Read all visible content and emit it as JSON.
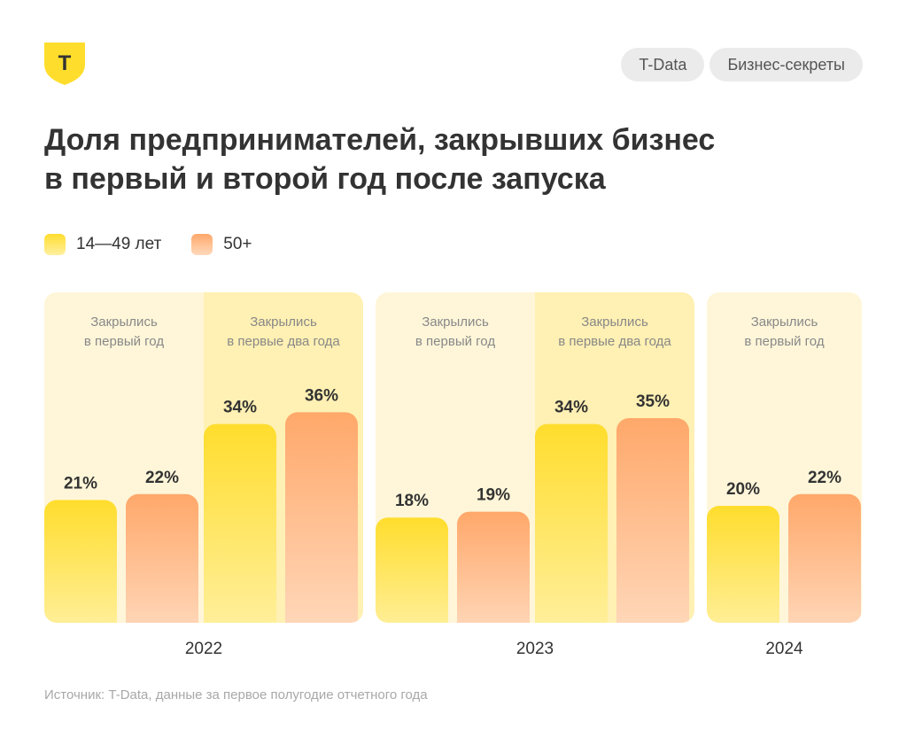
{
  "brand": {
    "logo_letter": "Т",
    "logo_color": "#ffdd2d"
  },
  "tags": [
    "T-Data",
    "Бизнес-секреты"
  ],
  "title_line1": "Доля предпринимателей, закрывших бизнес",
  "title_line2": "в первый и второй год после запуска",
  "legend": [
    {
      "label": "14—49 лет",
      "icon": "yellow-square-icon"
    },
    {
      "label": "50+",
      "icon": "orange-square-icon"
    }
  ],
  "colors": {
    "yellow_top": "#ffdd2d",
    "yellow_bottom": "#fff0a0",
    "orange_top": "#ffa86a",
    "orange_bottom": "#ffd9bc",
    "panel_light": "#fff6d9",
    "panel_dark": "#fff0b3",
    "text": "#333333",
    "muted": "#888888"
  },
  "chart_data": {
    "type": "bar",
    "title": "Доля предпринимателей, закрывших бизнес в первый и второй год после запуска",
    "unit": "%",
    "series_names": [
      "14—49 лет",
      "50+"
    ],
    "ylim": [
      0,
      40
    ],
    "years": [
      {
        "year": "2022",
        "groups": [
          {
            "label_line1": "Закрылись",
            "label_line2": "в первый год",
            "values": [
              21,
              22
            ],
            "labels": [
              "21%",
              "22%"
            ]
          },
          {
            "label_line1": "Закрылись",
            "label_line2": "в первые два года",
            "values": [
              34,
              36
            ],
            "labels": [
              "34%",
              "36%"
            ]
          }
        ]
      },
      {
        "year": "2023",
        "groups": [
          {
            "label_line1": "Закрылись",
            "label_line2": "в первый год",
            "values": [
              18,
              19
            ],
            "labels": [
              "18%",
              "19%"
            ]
          },
          {
            "label_line1": "Закрылись",
            "label_line2": "в первые два года",
            "values": [
              34,
              35
            ],
            "labels": [
              "34%",
              "35%"
            ]
          }
        ]
      },
      {
        "year": "2024",
        "groups": [
          {
            "label_line1": "Закрылись",
            "label_line2": "в первый год",
            "values": [
              20,
              22
            ],
            "labels": [
              "20%",
              "22%"
            ]
          }
        ]
      }
    ]
  },
  "source": "Источник: T-Data, данные за первое полугодие отчетного года"
}
